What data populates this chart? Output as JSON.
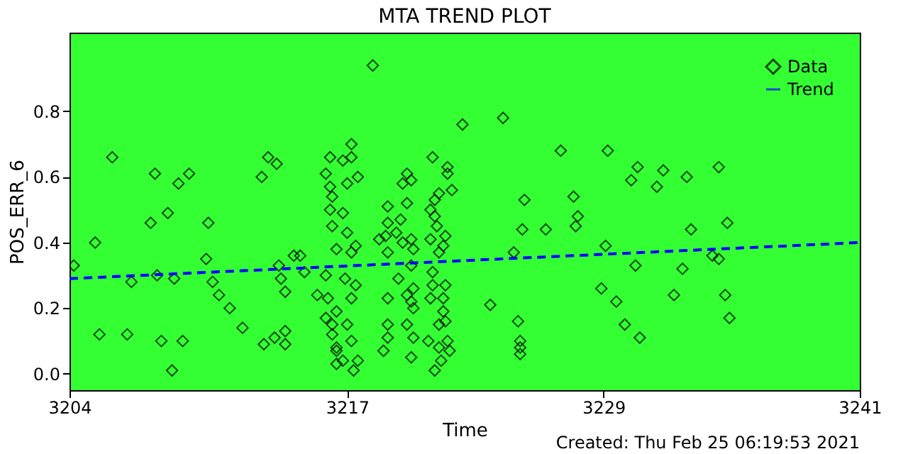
{
  "chart_data": {
    "type": "scatter",
    "title": "MTA TREND PLOT",
    "xlabel": "Time",
    "ylabel": "POS_ERR_6",
    "annotations": [
      "Created: Thu Feb 25 06:19:53 2021"
    ],
    "xlim": [
      3204,
      3241
    ],
    "xticks": [
      3204,
      3217,
      3229,
      3241
    ],
    "ylim": [
      -0.05,
      1.04
    ],
    "yticks": [
      {
        "value": 0,
        "label": "0.0"
      },
      0.2,
      0.4,
      0.6,
      0.8
    ],
    "grid": false,
    "legend": "top right",
    "series": [
      {
        "name": "Data",
        "marker": "diamond",
        "color": "#000000",
        "x": [
          3204.2,
          3205.2,
          3206.0,
          3205.4,
          3206.7,
          3206.9,
          3208.0,
          3207.8,
          3208.6,
          3208.1,
          3208.3,
          3209.1,
          3209.6,
          3208.9,
          3208.8,
          3209.3,
          3210.5,
          3210.4,
          3210.7,
          3211.0,
          3211.5,
          3212.1,
          3213.0,
          3213.3,
          3213.7,
          3213.1,
          3213.6,
          3214.1,
          3214.1,
          3213.8,
          3213.9,
          3214.1,
          3214.5,
          3214.8,
          3215.0,
          3215.6,
          3216.0,
          3216.2,
          3216.0,
          3216.2,
          3216.3,
          3216.2,
          3216.3,
          3216.5,
          3216.0,
          3216.1,
          3216.3,
          3216.3,
          3216.5,
          3216.5,
          3218.2,
          3222.4,
          3217.2,
          3216.8,
          3217.2,
          3217.5,
          3217.0,
          3216.8,
          3217.0,
          3217.2,
          3217.4,
          3216.9,
          3217.4,
          3217.2,
          3216.5,
          3217.0,
          3217.2,
          3216.5,
          3216.8,
          3217.3,
          3217.5,
          3219.8,
          3219.6,
          3220.0,
          3219.8,
          3218.9,
          3219.5,
          3218.9,
          3219.3,
          3218.5,
          3218.8,
          3219.6,
          3220.0,
          3220.1,
          3218.9,
          3220.0,
          3219.4,
          3218.9,
          3219.8,
          3220.1,
          3220.1,
          3220.0,
          3218.9,
          3219.8,
          3218.9,
          3220.1,
          3218.7,
          3220.0,
          3221.0,
          3221.7,
          3221.7,
          3221.9,
          3221.3,
          3221.1,
          3220.9,
          3221.1,
          3221.2,
          3220.9,
          3221.6,
          3221.5,
          3221.3,
          3221.0,
          3221.0,
          3221.6,
          3221.5,
          3220.9,
          3221.5,
          3221.6,
          3221.3,
          3221.7,
          3220.8,
          3221.3,
          3221.8,
          3221.4,
          3221.1,
          3223.7,
          3224.3,
          3227.0,
          3229.2,
          3230.6,
          3230.3,
          3231.8,
          3231.5,
          3232.9,
          3234.4,
          3225.3,
          3227.6,
          3225.2,
          3226.3,
          3227.8,
          3227.7,
          3233.1,
          3234.8,
          3224.8,
          3229.1,
          3234.1,
          3234.4,
          3230.5,
          3232.7,
          3228.9,
          3229.6,
          3232.3,
          3234.7,
          3234.9,
          3225.0,
          3230.0,
          3230.7,
          3225.1,
          3225.1,
          3225.1
        ],
        "values": [
          0.33,
          0.4,
          0.66,
          0.12,
          0.12,
          0.28,
          0.61,
          0.46,
          0.49,
          0.3,
          0.1,
          0.58,
          0.61,
          0.29,
          0.01,
          0.1,
          0.46,
          0.35,
          0.28,
          0.24,
          0.2,
          0.14,
          0.6,
          0.66,
          0.64,
          0.09,
          0.11,
          0.13,
          0.09,
          0.33,
          0.29,
          0.25,
          0.36,
          0.36,
          0.31,
          0.24,
          0.17,
          0.66,
          0.61,
          0.57,
          0.54,
          0.5,
          0.45,
          0.38,
          0.3,
          0.23,
          0.15,
          0.12,
          0.08,
          0.03,
          0.94,
          0.76,
          0.7,
          0.65,
          0.66,
          0.6,
          0.58,
          0.49,
          0.43,
          0.37,
          0.39,
          0.29,
          0.27,
          0.23,
          0.19,
          0.15,
          0.1,
          0.07,
          0.04,
          0.01,
          0.04,
          0.61,
          0.58,
          0.59,
          0.52,
          0.51,
          0.47,
          0.46,
          0.43,
          0.41,
          0.42,
          0.4,
          0.41,
          0.38,
          0.37,
          0.33,
          0.29,
          0.23,
          0.24,
          0.26,
          0.2,
          0.22,
          0.15,
          0.15,
          0.11,
          0.11,
          0.07,
          0.05,
          0.66,
          0.63,
          0.61,
          0.56,
          0.55,
          0.53,
          0.5,
          0.48,
          0.45,
          0.41,
          0.42,
          0.39,
          0.37,
          0.31,
          0.27,
          0.27,
          0.23,
          0.23,
          0.19,
          0.16,
          0.15,
          0.1,
          0.1,
          0.08,
          0.07,
          0.04,
          0.01,
          0.21,
          0.78,
          0.68,
          0.68,
          0.63,
          0.59,
          0.62,
          0.57,
          0.6,
          0.63,
          0.53,
          0.54,
          0.44,
          0.44,
          0.48,
          0.45,
          0.44,
          0.46,
          0.37,
          0.39,
          0.36,
          0.35,
          0.33,
          0.32,
          0.26,
          0.22,
          0.24,
          0.24,
          0.17,
          0.16,
          0.15,
          0.11,
          0.1,
          0.08,
          0.06
        ]
      },
      {
        "name": "Trend",
        "type": "line",
        "marker": "none",
        "line_style": "dashed",
        "color": "#0000ff",
        "x": [
          3204,
          3241
        ],
        "values": [
          0.29,
          0.4
        ]
      }
    ]
  }
}
